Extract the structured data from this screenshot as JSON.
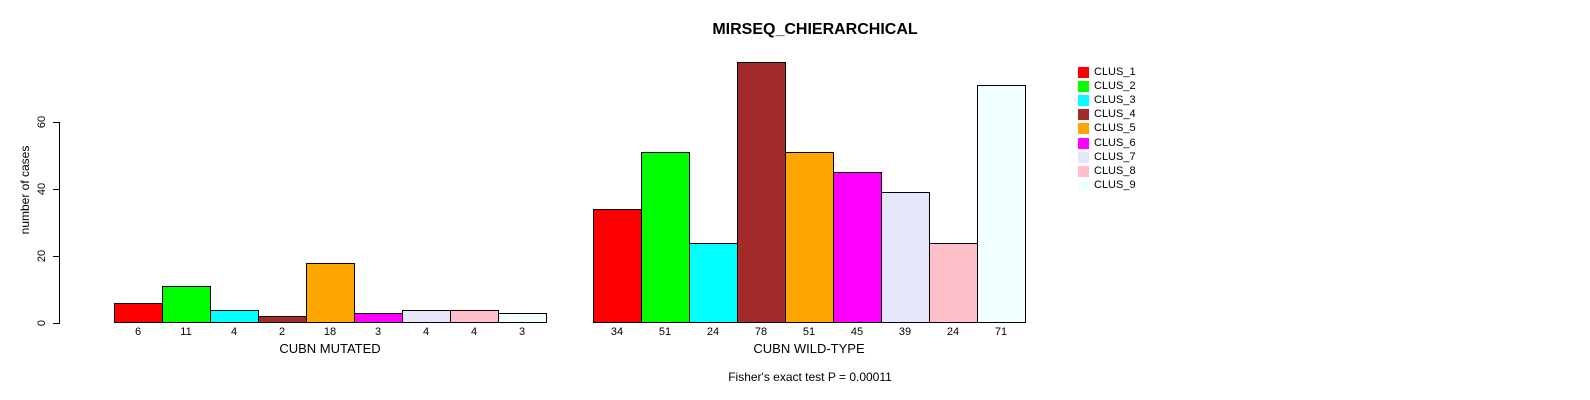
{
  "chart_data": {
    "type": "bar",
    "title": "MIRSEQ_CHIERARCHICAL",
    "ylabel": "number of cases",
    "xlabel": "",
    "yticks": [
      0,
      20,
      40,
      60
    ],
    "ylim": [
      0,
      80
    ],
    "grid": false,
    "legend_position": "right",
    "annotation": "Fisher's exact test P = 0.00011",
    "series_names": [
      "CLUS_1",
      "CLUS_2",
      "CLUS_3",
      "CLUS_4",
      "CLUS_5",
      "CLUS_6",
      "CLUS_7",
      "CLUS_8",
      "CLUS_9"
    ],
    "series_colors": [
      "#FF0000",
      "#00FF00",
      "#00FFFF",
      "#A52A2A",
      "#FFA500",
      "#FF00FF",
      "#E6E6FA",
      "#FFC0CB",
      "#F0FFFF"
    ],
    "groups": [
      {
        "label": "CUBN MUTATED",
        "values": [
          6,
          11,
          4,
          2,
          18,
          3,
          4,
          4,
          3
        ]
      },
      {
        "label": "CUBN WILD-TYPE",
        "values": [
          34,
          51,
          24,
          78,
          51,
          45,
          39,
          24,
          71
        ]
      }
    ]
  },
  "colors": {
    "background": "#FFFFFF",
    "axis": "#000000",
    "bar_border": "#000000",
    "text": "#000000"
  }
}
